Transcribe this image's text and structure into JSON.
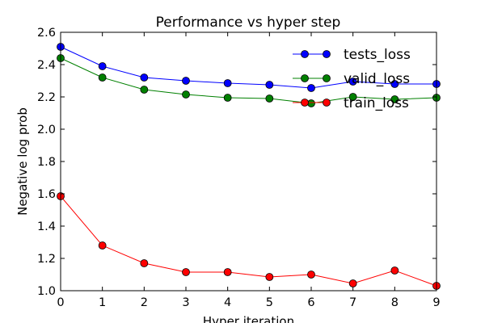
{
  "chart_data": {
    "type": "line",
    "title": "Performance vs hyper step",
    "xlabel": "Hyper iteration",
    "ylabel": "Negative log prob",
    "x": [
      0,
      1,
      2,
      3,
      4,
      5,
      6,
      7,
      8,
      9
    ],
    "xlim": [
      0,
      9
    ],
    "ylim": [
      1.0,
      2.6
    ],
    "xticks": [
      "0",
      "1",
      "2",
      "3",
      "4",
      "5",
      "6",
      "7",
      "8",
      "9"
    ],
    "yticks": [
      "1.0",
      "1.2",
      "1.4",
      "1.6",
      "1.8",
      "2.0",
      "2.2",
      "2.4",
      "2.6"
    ],
    "grid": false,
    "legend_position": "top-right",
    "series": [
      {
        "name": "tests_loss",
        "color": "#0000ff",
        "marker": "circle",
        "values": [
          2.51,
          2.39,
          2.32,
          2.3,
          2.285,
          2.275,
          2.255,
          2.295,
          2.28,
          2.28
        ]
      },
      {
        "name": "valid_loss",
        "color": "#008000",
        "marker": "circle",
        "values": [
          2.44,
          2.32,
          2.245,
          2.215,
          2.195,
          2.19,
          2.16,
          2.2,
          2.185,
          2.195
        ]
      },
      {
        "name": "train_loss",
        "color": "#ff0000",
        "marker": "circle",
        "values": [
          1.585,
          1.28,
          1.17,
          1.115,
          1.115,
          1.085,
          1.1,
          1.045,
          1.125,
          1.03
        ]
      }
    ]
  }
}
